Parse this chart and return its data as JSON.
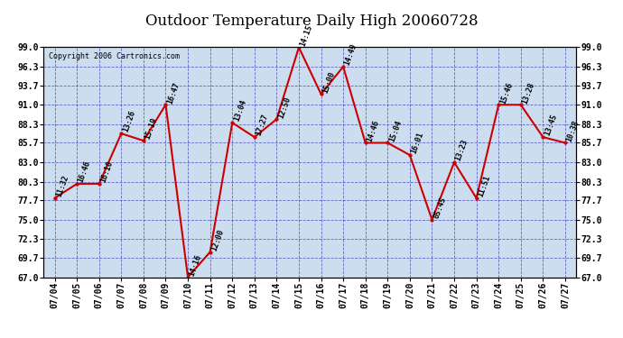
{
  "title": "Outdoor Temperature Daily High 20060728",
  "copyright": "Copyright 2006 Cartronics.com",
  "dates": [
    "07/04",
    "07/05",
    "07/06",
    "07/07",
    "07/08",
    "07/09",
    "07/10",
    "07/11",
    "07/12",
    "07/13",
    "07/14",
    "07/15",
    "07/16",
    "07/17",
    "07/18",
    "07/19",
    "07/20",
    "07/21",
    "07/22",
    "07/23",
    "07/24",
    "07/25",
    "07/26",
    "07/27"
  ],
  "temps": [
    78.0,
    80.0,
    80.0,
    87.0,
    86.0,
    91.0,
    67.0,
    70.5,
    88.5,
    86.5,
    89.0,
    99.0,
    92.5,
    96.3,
    85.7,
    85.7,
    84.0,
    75.0,
    83.0,
    78.0,
    91.0,
    91.0,
    86.5,
    85.7
  ],
  "time_labels": [
    "11:32",
    "16:46",
    "16:10",
    "13:26",
    "15:19",
    "16:47",
    "14:16",
    "12:00",
    "13:04",
    "17:27",
    "12:50",
    "14:15",
    "15:00",
    "14:49",
    "14:46",
    "15:04",
    "16:01",
    "05:45",
    "13:23",
    "11:51",
    "15:46",
    "13:28",
    "13:45",
    "10:38"
  ],
  "ylim": [
    67.0,
    99.0
  ],
  "yticks": [
    67.0,
    69.7,
    72.3,
    75.0,
    77.7,
    80.3,
    83.0,
    85.7,
    88.3,
    91.0,
    93.7,
    96.3,
    99.0
  ],
  "line_color": "#cc0000",
  "marker_color": "#cc0000",
  "bg_color": "#ccddf0",
  "grid_color": "#3333aa",
  "title_fontsize": 12,
  "copyright_fontsize": 6,
  "label_fontsize": 6,
  "tick_fontsize": 7
}
